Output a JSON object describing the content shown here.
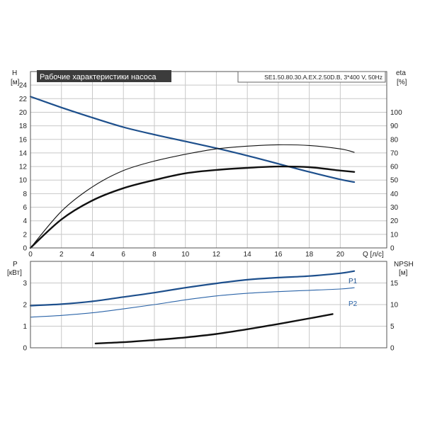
{
  "chart_data": [
    {
      "type": "line",
      "title": "Рабочие характеристики насоса",
      "model_label": "SE1.50.80.30.A.EX.2.50D.B, 3*400 V, 50Hz",
      "xlabel": "Q [л/с]",
      "ylabel_left": [
        "H",
        "[м]"
      ],
      "ylabel_right": [
        "eta",
        "[%]"
      ],
      "xlim": [
        0,
        23
      ],
      "ylim_left": [
        0,
        26
      ],
      "ylim_right": [
        0,
        130
      ],
      "xticks": [
        "0",
        "2",
        "4",
        "6",
        "8",
        "10",
        "12",
        "14",
        "16",
        "18",
        "20"
      ],
      "yticks_left": [
        "0",
        "2",
        "4",
        "6",
        "8",
        "10",
        "12",
        "14",
        "16",
        "18",
        "20",
        "22",
        "24"
      ],
      "yticks_right": [
        "0",
        "10",
        "20",
        "30",
        "40",
        "50",
        "60",
        "70",
        "80",
        "90",
        "100"
      ],
      "grid": true,
      "series": [
        {
          "axis": "left",
          "color": "#1d4f8c",
          "x": [
            0,
            2,
            4,
            6,
            8,
            10,
            12,
            14,
            16,
            18,
            20,
            20.9
          ],
          "values": [
            22.3,
            20.7,
            19.2,
            17.8,
            16.7,
            15.7,
            14.7,
            13.6,
            12.4,
            11.2,
            10.1,
            9.7
          ]
        },
        {
          "axis": "right",
          "color": "#111111",
          "x": [
            0,
            2,
            4,
            6,
            8,
            10,
            12,
            14,
            16,
            18,
            20,
            20.9
          ],
          "values": [
            0,
            21,
            35,
            44,
            50,
            55,
            57.5,
            59,
            60,
            59.5,
            57,
            56
          ]
        },
        {
          "axis": "right",
          "color": "#111111",
          "x": [
            0,
            2,
            4,
            6,
            8,
            10,
            12,
            14,
            16,
            18,
            20,
            20.9
          ],
          "values": [
            0,
            27,
            45,
            57,
            64,
            69,
            73,
            75,
            76,
            75.5,
            73,
            70.5
          ]
        }
      ]
    },
    {
      "type": "line",
      "ylabel_left": [
        "P",
        "[кВт]"
      ],
      "ylabel_right": [
        "NPSH",
        "[м]"
      ],
      "xlim": [
        0,
        23
      ],
      "ylim_left": [
        0,
        4
      ],
      "ylim_right": [
        0,
        20
      ],
      "yticks_left": [
        "0",
        "1",
        "2",
        "3"
      ],
      "yticks_right": [
        "0",
        "5",
        "10",
        "15"
      ],
      "grid": true,
      "series": [
        {
          "name": "P1",
          "axis": "left",
          "color": "#1d4f8c",
          "x": [
            0,
            2,
            4,
            6,
            8,
            10,
            12,
            14,
            16,
            18,
            20,
            20.9
          ],
          "values": [
            1.95,
            2.02,
            2.15,
            2.35,
            2.55,
            2.78,
            2.98,
            3.15,
            3.25,
            3.32,
            3.45,
            3.55
          ]
        },
        {
          "name": "P2",
          "axis": "left",
          "color": "#2b64a8",
          "x": [
            0,
            2,
            4,
            6,
            8,
            10,
            12,
            14,
            16,
            18,
            20,
            20.9
          ],
          "values": [
            1.42,
            1.5,
            1.62,
            1.8,
            2.0,
            2.22,
            2.4,
            2.52,
            2.6,
            2.66,
            2.72,
            2.78
          ]
        },
        {
          "axis": "right",
          "color": "#111111",
          "x": [
            4.2,
            6,
            8,
            10,
            12,
            14,
            16,
            18,
            19.5
          ],
          "values": [
            1.0,
            1.3,
            1.8,
            2.4,
            3.2,
            4.3,
            5.5,
            6.8,
            7.8
          ]
        }
      ]
    }
  ]
}
